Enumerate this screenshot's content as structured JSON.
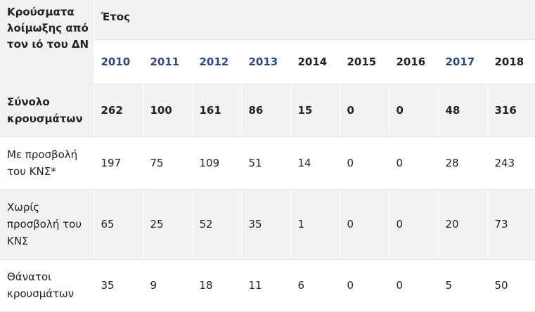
{
  "table": {
    "corner_label": "Κρούσματα λοίμωξης από τον ιό του ΔΝ",
    "year_group_label": "Έτος",
    "years": [
      {
        "label": "2010",
        "linked": true
      },
      {
        "label": "2011",
        "linked": true
      },
      {
        "label": "2012",
        "linked": true
      },
      {
        "label": "2013",
        "linked": true
      },
      {
        "label": "2014",
        "linked": false
      },
      {
        "label": "2015",
        "linked": false
      },
      {
        "label": "2016",
        "linked": false
      },
      {
        "label": "2017",
        "linked": true
      },
      {
        "label": "2018",
        "linked": false
      }
    ],
    "rows": [
      {
        "label": "Σύνολο κρουσμάτων",
        "values": [
          "262",
          "100",
          "161",
          "86",
          "15",
          "0",
          "0",
          "48",
          "316"
        ]
      },
      {
        "label": "Με προσβολή του ΚΝΣ*",
        "values": [
          "197",
          "75",
          "109",
          "51",
          "14",
          "0",
          "0",
          "28",
          "243"
        ]
      },
      {
        "label": "Χωρίς προσβολή του ΚΝΣ",
        "values": [
          "65",
          "25",
          "52",
          "35",
          "1",
          "0",
          "0",
          "20",
          "73"
        ]
      },
      {
        "label": "Θάνατοι κρουσμάτων",
        "values": [
          "35",
          "9",
          "18",
          "11",
          "6",
          "0",
          "0",
          "5",
          "50"
        ]
      }
    ]
  }
}
